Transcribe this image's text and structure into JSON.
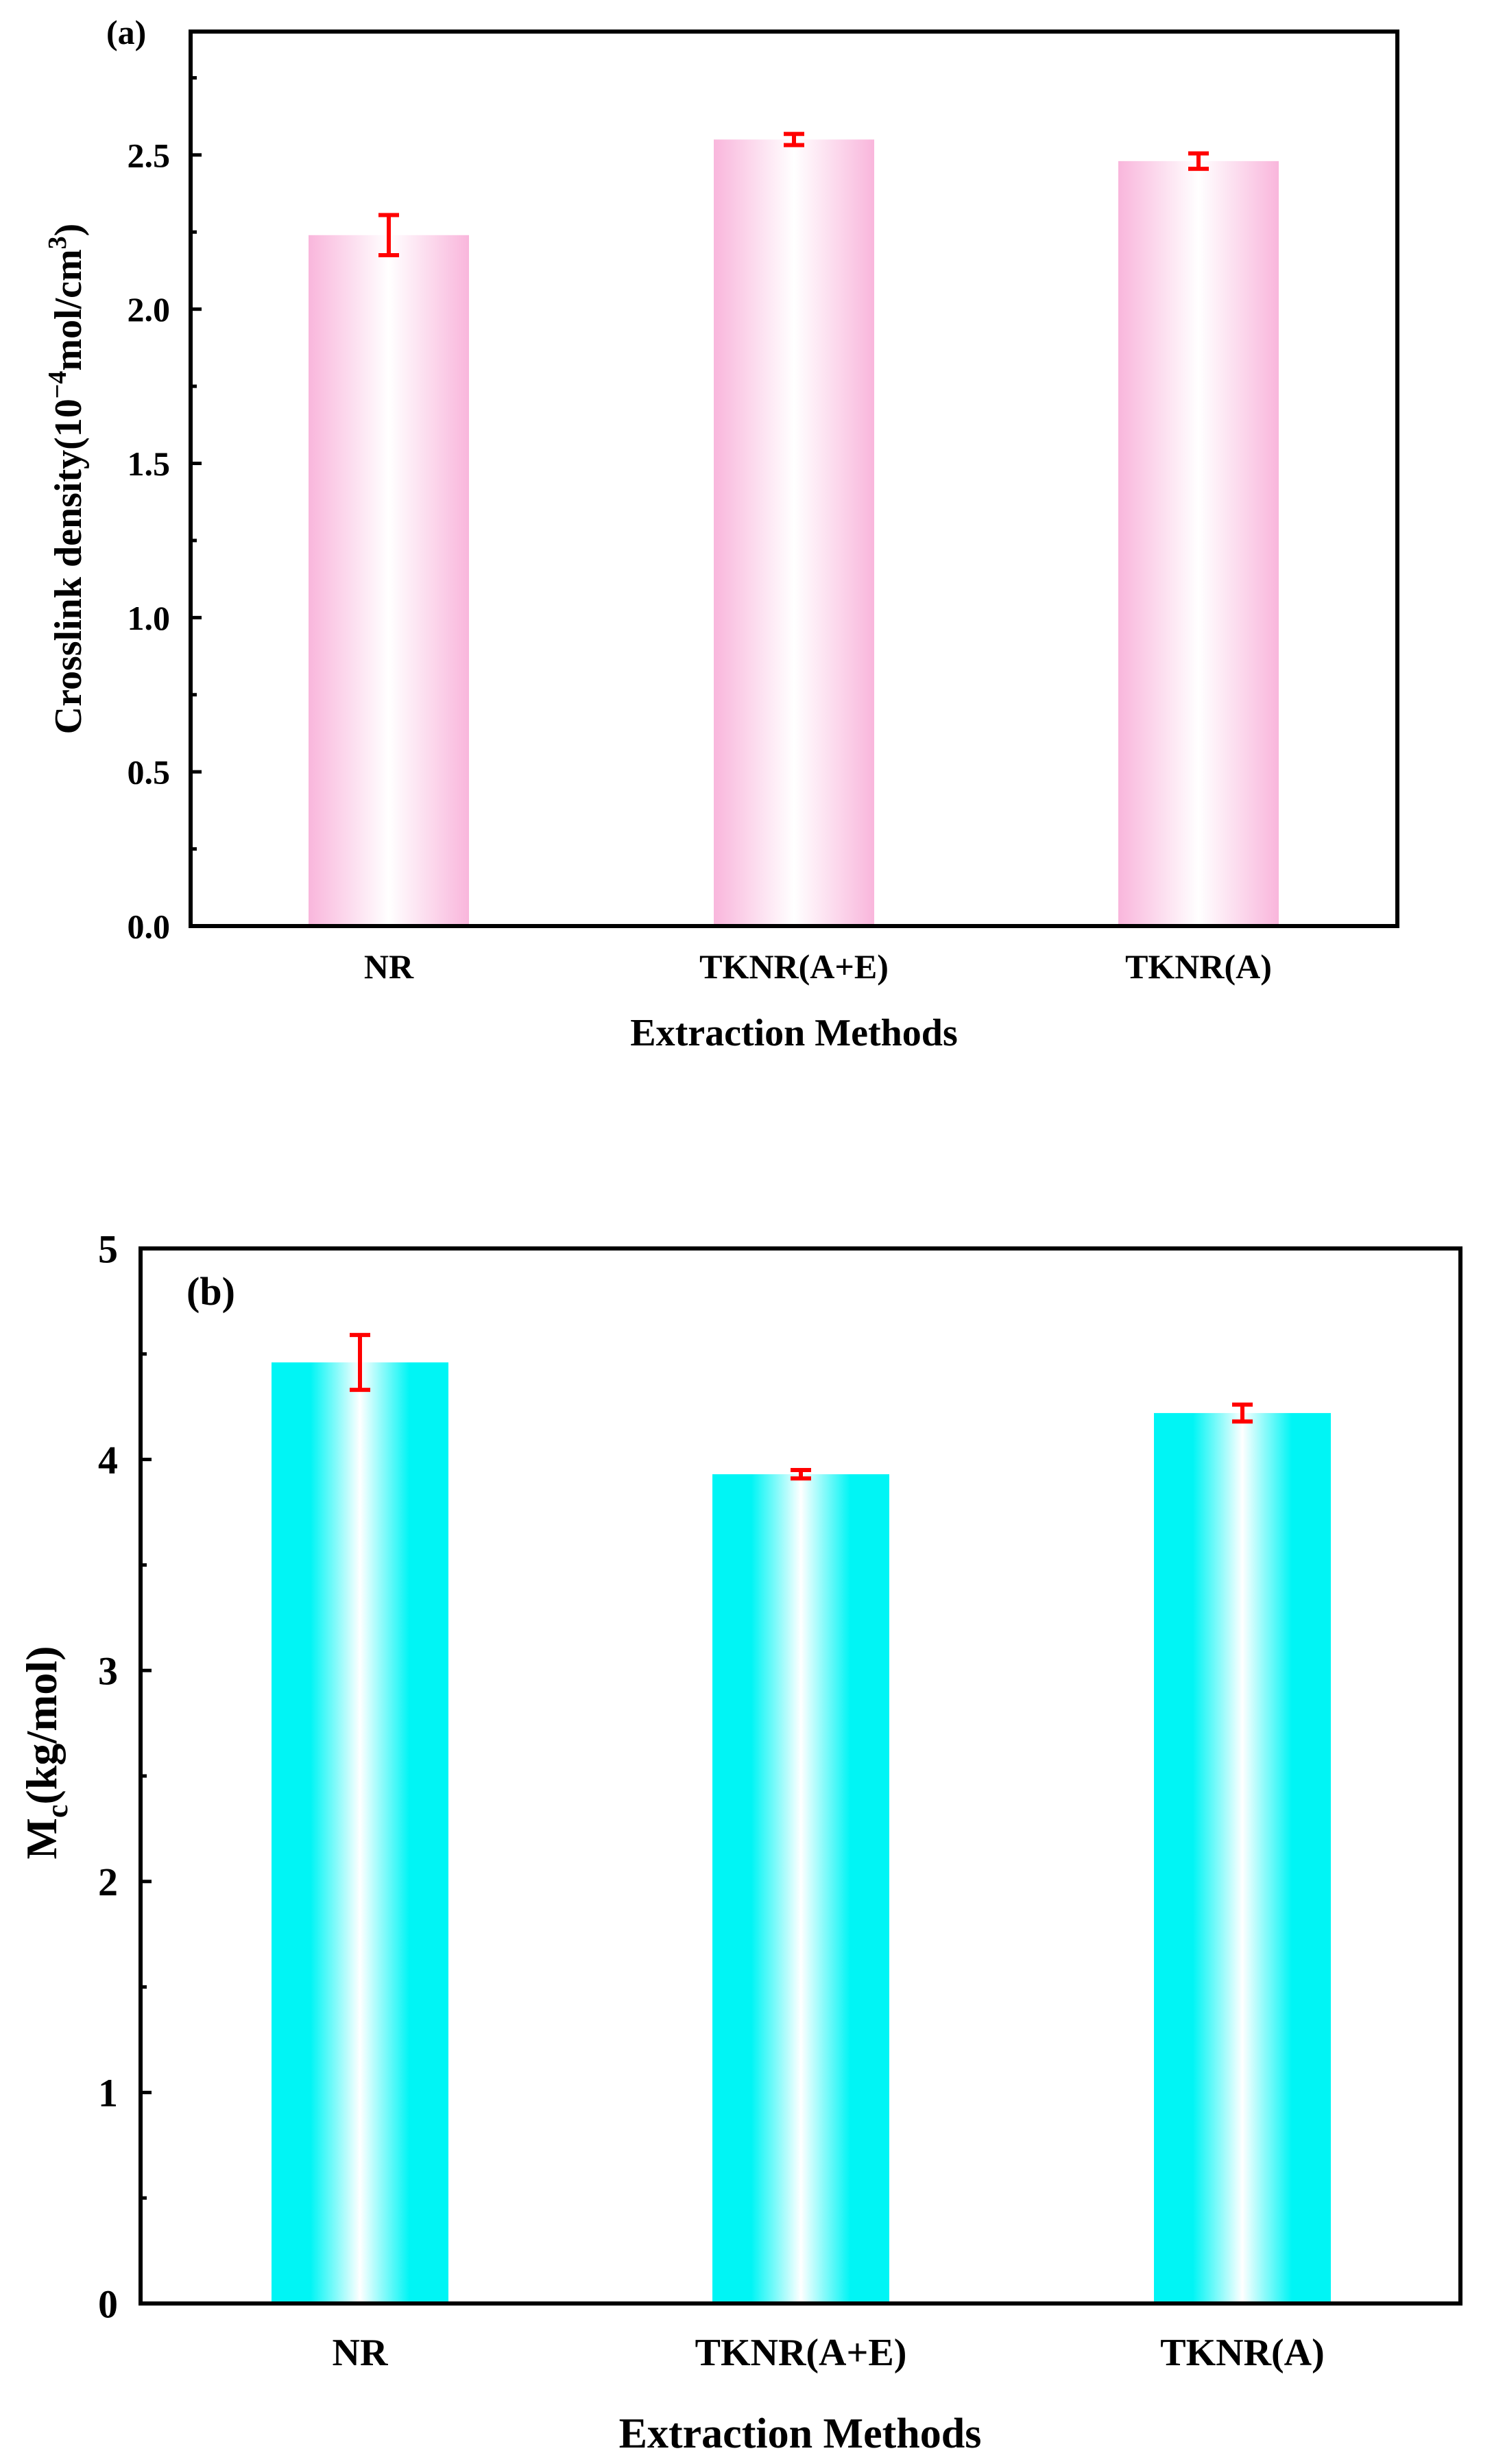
{
  "colors": {
    "panel_a_bar": "#f9b6dc",
    "panel_b_bar": "#00f5f5",
    "error_bar": "#ff0000",
    "axis": "#000000"
  },
  "chart_data": [
    {
      "type": "bar",
      "panel_label": "(a)",
      "categories": [
        "NR",
        "TKNR(A+E)",
        "TKNR(A)"
      ],
      "values": [
        2.24,
        2.55,
        2.48
      ],
      "errors": [
        0.065,
        0.018,
        0.025
      ],
      "xlabel": "Extraction Methods",
      "ylabel_main": "Crosslink density(10",
      "ylabel_exp": "−4",
      "ylabel_unit": "mol/cm",
      "ylabel_unit_exp": "3",
      "ylabel_close": ")",
      "ylim": [
        0,
        2.9
      ],
      "yticks": [
        0.0,
        0.5,
        1.0,
        1.5,
        2.0,
        2.5
      ],
      "ytick_labels": [
        "0.0",
        "0.5",
        "1.0",
        "1.5",
        "2.0",
        "2.5"
      ],
      "grid": false
    },
    {
      "type": "bar",
      "panel_label": "(b)",
      "categories": [
        "NR",
        "TKNR(A+E)",
        "TKNR(A)"
      ],
      "values": [
        4.46,
        3.93,
        4.22
      ],
      "errors": [
        0.13,
        0.02,
        0.04
      ],
      "xlabel": "Extraction Methods",
      "ylabel_main": "M",
      "ylabel_sub": "c",
      "ylabel_rest": "(kg/mol)",
      "ylim": [
        0,
        5
      ],
      "yticks": [
        0,
        1,
        2,
        3,
        4,
        5
      ],
      "ytick_labels": [
        "0",
        "1",
        "2",
        "3",
        "4",
        "5"
      ],
      "grid": false
    }
  ]
}
